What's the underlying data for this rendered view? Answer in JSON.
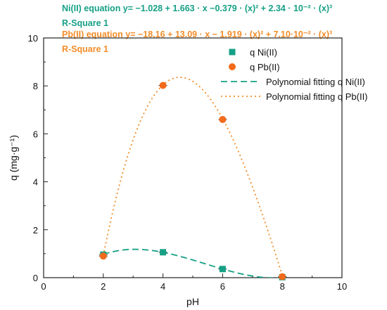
{
  "annotations": {
    "ni_equation": "Ni(II) equation  y= −1.028 + 1.663 · x −0.379 · (x)² + 2.34 · 10⁻² · (x)³",
    "ni_rsquare": "R-Square  1",
    "pb_equation": "Pb(II) equation  y= −18.16 + 13.09 · x − 1.919 · (x)² + 7.10·10⁻² · (x)³",
    "pb_rsquare": "R-Square  1"
  },
  "chart_data": {
    "type": "scatter",
    "xlabel": "pH",
    "ylabel": "q (mg·g⁻¹)",
    "xlim": [
      0,
      10
    ],
    "ylim": [
      0,
      10
    ],
    "xticks": [
      "0",
      "2",
      "4",
      "6",
      "8",
      "10"
    ],
    "yticks": [
      "0",
      "2",
      "4",
      "6",
      "8",
      "10"
    ],
    "grid": false,
    "legend_position": "top-right",
    "series": [
      {
        "name": "q Ni(II)",
        "kind": "markers",
        "marker": "square",
        "color": "#16a085",
        "x": [
          2,
          4,
          6,
          8
        ],
        "y": [
          0.96,
          1.06,
          0.36,
          0.02
        ]
      },
      {
        "name": "q Pb(II)",
        "kind": "markers",
        "marker": "circle",
        "color": "#f26a1b",
        "x": [
          2,
          4,
          6,
          8
        ],
        "y": [
          0.9,
          8.02,
          6.6,
          0.04
        ]
      },
      {
        "name": "Polynomial fitting q Ni(II)",
        "kind": "fit",
        "style": "dashed",
        "color": "#16a085",
        "coefficients": [
          -1.028,
          1.663,
          -0.379,
          0.0234
        ],
        "x_range": [
          2,
          8
        ]
      },
      {
        "name": "Polynomial fitting q Pb(II)",
        "kind": "fit",
        "style": "dotted",
        "color": "#f28c28",
        "coefficients": [
          -18.16,
          13.09,
          -1.919,
          0.071
        ],
        "x_range": [
          2,
          8
        ]
      }
    ]
  }
}
